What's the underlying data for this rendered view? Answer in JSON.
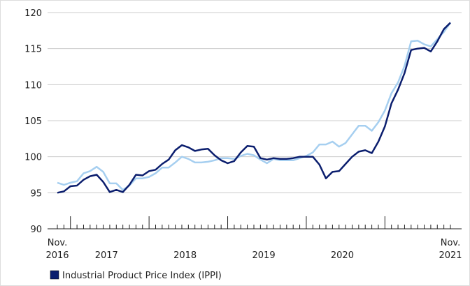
{
  "chart_data": {
    "type": "line",
    "categories": [
      "Nov.\n2016",
      null,
      null,
      null,
      null,
      null,
      null,
      null,
      null,
      null,
      null,
      null,
      null,
      null,
      null,
      null,
      null,
      null,
      null,
      null,
      null,
      null,
      null,
      null,
      null,
      null,
      null,
      null,
      null,
      null,
      null,
      null,
      null,
      null,
      null,
      null,
      null,
      null,
      null,
      null,
      null,
      null,
      null,
      null,
      null,
      null,
      null,
      null,
      null,
      null,
      null,
      null,
      null,
      null,
      null,
      null,
      null,
      null,
      null,
      null,
      "Nov.\n2021"
    ],
    "year_labels": [
      "2017",
      "2018",
      "2019",
      "2020"
    ],
    "series": [
      {
        "name": "Industrial Product Price Index (IPPI)",
        "color": "#0b1e6e",
        "values": [
          95.0,
          95.2,
          95.9,
          96.0,
          96.8,
          97.3,
          97.5,
          96.5,
          95.1,
          95.4,
          95.1,
          96.1,
          97.5,
          97.4,
          98.0,
          98.2,
          99.0,
          99.6,
          100.9,
          101.6,
          101.3,
          100.8,
          101.0,
          101.1,
          100.2,
          99.5,
          99.1,
          99.4,
          100.6,
          101.5,
          101.4,
          99.8,
          99.6,
          99.8,
          99.7,
          99.7,
          99.8,
          100.0,
          100.0,
          100.0,
          98.9,
          97.0,
          97.9,
          98.0,
          99.0,
          100.0,
          100.7,
          100.9,
          100.5,
          102.1,
          104.2,
          107.4,
          109.3,
          111.6,
          114.8,
          115.0,
          115.1,
          114.6,
          116.0,
          117.7,
          118.6
        ]
      },
      {
        "color": "#a6cff0",
        "values": [
          96.4,
          96.1,
          96.4,
          96.6,
          97.7,
          98.0,
          98.6,
          97.9,
          96.3,
          96.3,
          95.4,
          96.0,
          97.0,
          97.0,
          97.2,
          97.7,
          98.5,
          98.5,
          99.2,
          100.0,
          99.7,
          99.2,
          99.2,
          99.3,
          99.5,
          99.8,
          99.8,
          99.7,
          100.1,
          100.4,
          100.2,
          99.6,
          99.1,
          99.7,
          99.5,
          99.5,
          99.5,
          99.8,
          100.1,
          100.6,
          101.7,
          101.7,
          102.1,
          101.4,
          101.9,
          103.1,
          104.3,
          104.3,
          103.6,
          104.8,
          106.4,
          108.8,
          110.3,
          112.6,
          116.0,
          116.1,
          115.6,
          115.3,
          116.3,
          117.3,
          118.6
        ]
      }
    ],
    "ylim": [
      90,
      120
    ],
    "yticks": [
      90,
      95,
      100,
      105,
      110,
      115,
      120
    ],
    "grid": true
  }
}
